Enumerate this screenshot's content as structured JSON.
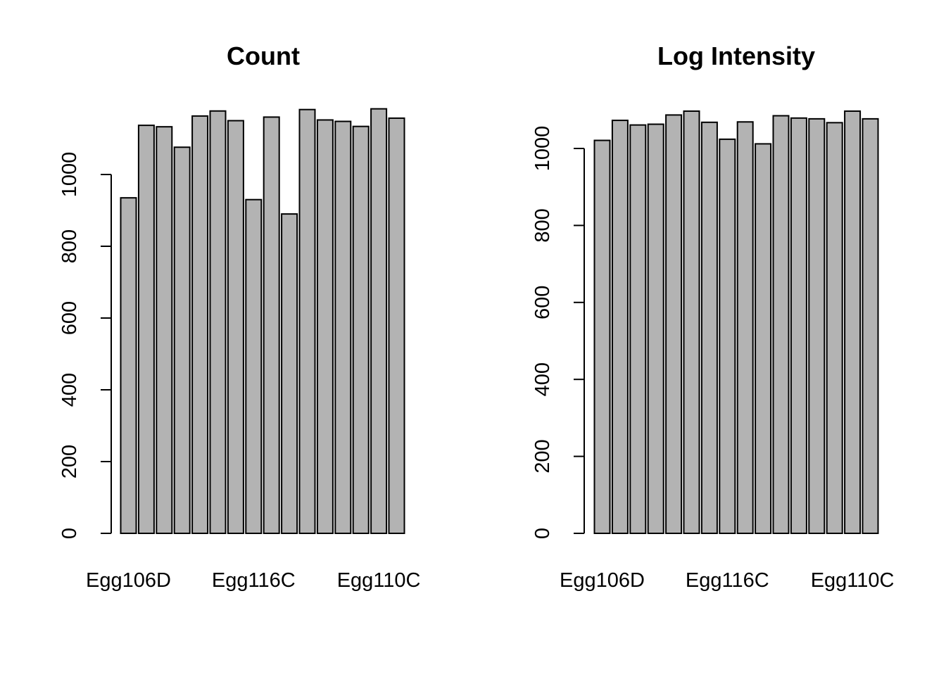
{
  "charts": [
    {
      "type": "bar",
      "title": "Count",
      "categories": [
        "Egg106D",
        "",
        "",
        "",
        "",
        "",
        "",
        "Egg116C",
        "",
        "",
        "",
        "",
        "",
        "",
        "Egg110C",
        ""
      ],
      "values": [
        935,
        1137,
        1133,
        1076,
        1163,
        1177,
        1150,
        930,
        1160,
        890,
        1181,
        1152,
        1148,
        1134,
        1183,
        1157
      ],
      "ylim": [
        0,
        1200
      ],
      "yticks": [
        0,
        200,
        400,
        600,
        800,
        1000
      ],
      "bar_color": "#b3b3b3",
      "grid": false
    },
    {
      "type": "bar",
      "title": "Log Intensity",
      "categories": [
        "Egg106D",
        "",
        "",
        "",
        "",
        "",
        "",
        "Egg116C",
        "",
        "",
        "",
        "",
        "",
        "",
        "Egg110C",
        ""
      ],
      "values": [
        1021,
        1073,
        1061,
        1063,
        1087,
        1097,
        1068,
        1024,
        1069,
        1012,
        1085,
        1079,
        1077,
        1067,
        1097,
        1077
      ],
      "ylim": [
        0,
        1100
      ],
      "yticks": [
        0,
        200,
        400,
        600,
        800,
        1000
      ],
      "bar_color": "#b3b3b3",
      "grid": false
    }
  ]
}
